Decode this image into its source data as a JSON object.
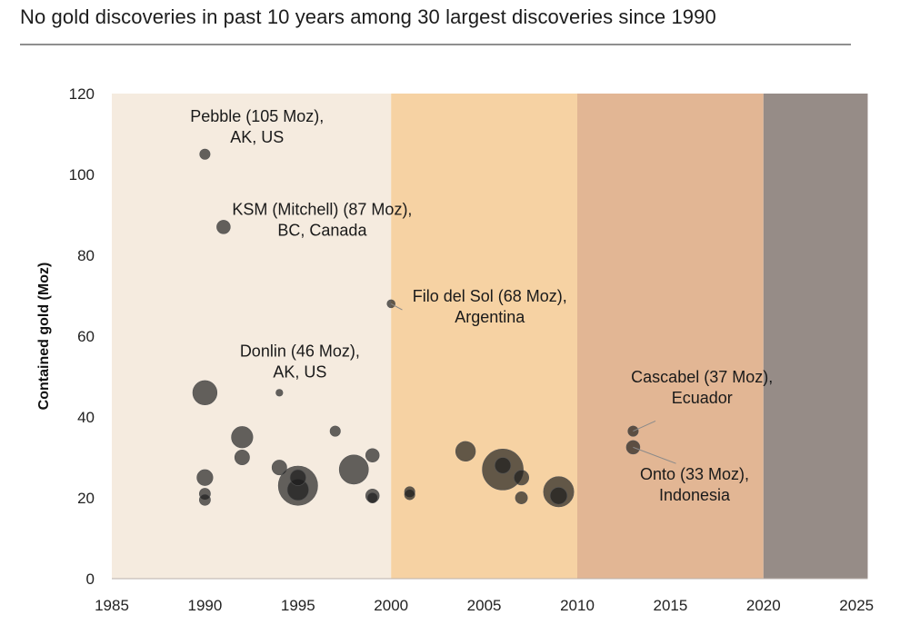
{
  "title": "No gold discoveries in past 10 years among 30 largest discoveries since 1990",
  "colors": {
    "band_1990s": "#f5ebdf",
    "band_2000s": "#f6d2a3",
    "band_2010s": "#e2b694",
    "band_2020s": "#968c87",
    "bubble": "#1c1c1c",
    "rule": "#8f8f8f"
  },
  "chart_data": {
    "type": "scatter",
    "subtype": "bubble",
    "title": "No gold discoveries in past 10 years among 30 largest discoveries since 1990",
    "xlabel": "",
    "ylabel": "Contained gold (Moz)",
    "xlim": [
      1985,
      2025
    ],
    "ylim": [
      0,
      120
    ],
    "xticks": [
      1985,
      1990,
      1995,
      2000,
      2005,
      2010,
      2015,
      2020,
      2025
    ],
    "yticks": [
      0,
      20,
      40,
      60,
      80,
      100,
      120
    ],
    "grid": false,
    "legend": "none",
    "background_bands": [
      {
        "from": 1985,
        "to": 2000,
        "color": "#f5ebdf"
      },
      {
        "from": 2000,
        "to": 2010,
        "color": "#f6d2a3"
      },
      {
        "from": 2010,
        "to": 2020,
        "color": "#e2b694"
      },
      {
        "from": 2020,
        "to": 2025.6,
        "color": "#968c87"
      }
    ],
    "points": [
      {
        "x": 1990,
        "y": 105,
        "size": 1
      },
      {
        "x": 1991,
        "y": 87,
        "size": 2
      },
      {
        "x": 1990,
        "y": 46,
        "size": 8
      },
      {
        "x": 1994,
        "y": 46,
        "size": 0.3
      },
      {
        "x": 2000,
        "y": 68,
        "size": 0.5
      },
      {
        "x": 1992,
        "y": 35,
        "size": 6
      },
      {
        "x": 1992,
        "y": 30,
        "size": 2.5
      },
      {
        "x": 1990,
        "y": 25,
        "size": 3
      },
      {
        "x": 1990,
        "y": 21,
        "size": 1.2
      },
      {
        "x": 1990,
        "y": 19.5,
        "size": 1.2
      },
      {
        "x": 1994,
        "y": 27.5,
        "size": 2.5
      },
      {
        "x": 1995,
        "y": 23,
        "size": 23
      },
      {
        "x": 1995,
        "y": 22,
        "size": 6
      },
      {
        "x": 1995,
        "y": 25,
        "size": 3
      },
      {
        "x": 1997,
        "y": 36.5,
        "size": 1
      },
      {
        "x": 1998,
        "y": 27,
        "size": 12
      },
      {
        "x": 1999,
        "y": 30.5,
        "size": 2
      },
      {
        "x": 1999,
        "y": 20.5,
        "size": 2
      },
      {
        "x": 1999,
        "y": 20,
        "size": 1
      },
      {
        "x": 2001,
        "y": 21.5,
        "size": 1
      },
      {
        "x": 2001,
        "y": 20.8,
        "size": 1
      },
      {
        "x": 2004,
        "y": 31.5,
        "size": 5
      },
      {
        "x": 2006,
        "y": 27,
        "size": 25
      },
      {
        "x": 2006,
        "y": 28,
        "size": 3
      },
      {
        "x": 2007,
        "y": 25,
        "size": 2.5
      },
      {
        "x": 2007,
        "y": 20,
        "size": 1.5
      },
      {
        "x": 2009,
        "y": 21.5,
        "size": 13
      },
      {
        "x": 2009,
        "y": 20.5,
        "size": 3.5
      },
      {
        "x": 2013,
        "y": 36.5,
        "size": 1
      },
      {
        "x": 2013,
        "y": 32.5,
        "size": 2
      }
    ],
    "annotations": [
      {
        "text": [
          "Pebble (105 Moz),",
          "AK, US"
        ],
        "x": 1992.8,
        "y": 113,
        "align": "center"
      },
      {
        "text": [
          "KSM (Mitchell) (87 Moz),",
          "BC, Canada"
        ],
        "x": 1996.3,
        "y": 90,
        "align": "center"
      },
      {
        "text": [
          "Filo del Sol (68 Moz),",
          "Argentina"
        ],
        "x": 2005.3,
        "y": 68.5,
        "align": "center"
      },
      {
        "text": [
          "Donlin (46 Moz),",
          "AK, US"
        ],
        "x": 1995.1,
        "y": 55,
        "align": "center"
      },
      {
        "text": [
          "Cascabel (37 Moz),",
          "Ecuador"
        ],
        "x": 2016.7,
        "y": 48.5,
        "align": "center"
      },
      {
        "text": [
          "Onto (33 Moz),",
          "Indonesia"
        ],
        "x": 2016.3,
        "y": 24.5,
        "align": "center"
      }
    ],
    "leaders": [
      {
        "from": [
          2000,
          68
        ],
        "to": [
          2000.6,
          66.5
        ]
      },
      {
        "from": [
          2013,
          36.5
        ],
        "to": [
          2014.2,
          39
        ]
      },
      {
        "from": [
          2013,
          32.5
        ],
        "to": [
          2015.3,
          28.5
        ]
      }
    ]
  }
}
